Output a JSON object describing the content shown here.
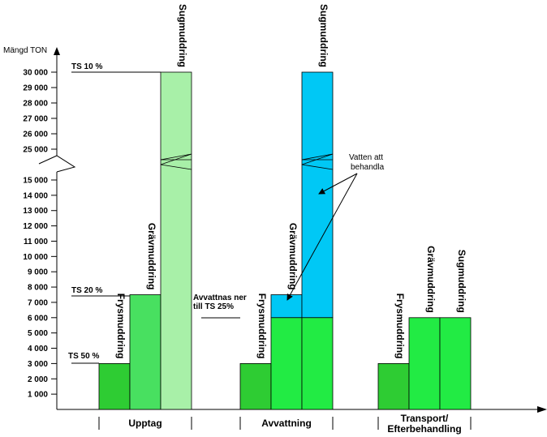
{
  "chart_data": {
    "type": "bar",
    "ylabel": "Mängd TON",
    "y_ticks_lower": [
      1000,
      2000,
      3000,
      4000,
      5000,
      6000,
      7000,
      8000,
      9000,
      10000,
      11000,
      12000,
      13000,
      14000,
      15000
    ],
    "y_ticks_upper": [
      25000,
      26000,
      27000,
      28000,
      29000,
      30000
    ],
    "y_tick_labels_lower": [
      "1 000",
      "2 000",
      "3 000",
      "4 000",
      "5 000",
      "6 000",
      "7 000",
      "8 000",
      "9 000",
      "10 000",
      "11 000",
      "12 000",
      "13 000",
      "14 000",
      "15 000"
    ],
    "y_tick_labels_upper": [
      "25 000",
      "26 000",
      "27 000",
      "28 000",
      "29 000",
      "30 000"
    ],
    "axis_break": "15000-25000",
    "groups": [
      {
        "label": "Upptag",
        "bars": [
          {
            "label": "Frysmuddring",
            "value": 3000,
            "color": "#2ecc33"
          },
          {
            "label": "Grävmuddring",
            "value": 7500,
            "color": "#48e060"
          },
          {
            "label": "Sugmuddring",
            "value": 30000,
            "color": "#a8f0a8"
          }
        ]
      },
      {
        "label": "Avvattning",
        "bars": [
          {
            "label": "Frysmuddring",
            "value": 3000,
            "color": "#2ecc33"
          },
          {
            "label": "Grävmuddring",
            "value": 7500,
            "base_value": 6000,
            "color": "#22eb44",
            "water_color": "#00c8f5"
          },
          {
            "label": "Sugmuddring",
            "value": 30000,
            "base_value": 6000,
            "color": "#22eb44",
            "water_color": "#00c8f5"
          }
        ]
      },
      {
        "label_lines": [
          "Transport/",
          "Efterbehandling"
        ],
        "bars": [
          {
            "label": "Frysmuddring",
            "value": 3000,
            "color": "#2ecc33"
          },
          {
            "label": "Grävmuddring",
            "value": 6000,
            "color": "#22eb44"
          },
          {
            "label": "Sugmuddring",
            "value": 6000,
            "color": "#22eb44"
          }
        ]
      }
    ],
    "annotations": [
      {
        "text": "TS 10 %",
        "value": 30000
      },
      {
        "text": "TS 20 %",
        "value": 7500
      },
      {
        "text": "TS 50 %",
        "value": 3000
      },
      {
        "lines": [
          "Avvattnas ner",
          "till TS 25%"
        ],
        "value": 6000
      },
      {
        "lines": [
          "Vatten att",
          "behandla"
        ]
      }
    ]
  }
}
